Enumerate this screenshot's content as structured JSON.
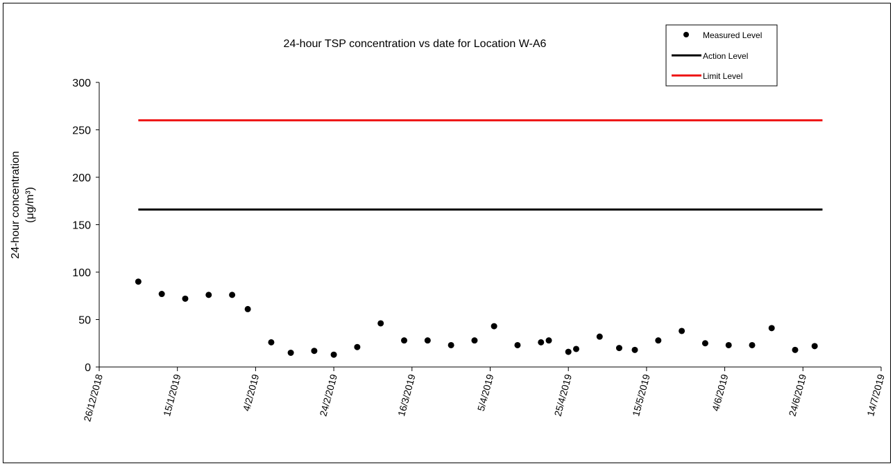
{
  "chart_data": {
    "type": "scatter",
    "title": "24-hour TSP concentration vs date for Location W-A6",
    "xlabel": "",
    "ylabel": "24-hour concentration",
    "ylabel_unit": "(μg/m³)",
    "xlim": [
      "2018-12-26",
      "2019-07-14"
    ],
    "ylim": [
      0,
      300
    ],
    "x_ticks": [
      "26/12/2018",
      "15/1/2019",
      "4/2/2019",
      "24/2/2019",
      "16/3/2019",
      "5/4/2019",
      "25/4/2019",
      "15/5/2019",
      "4/6/2019",
      "24/6/2019",
      "14/7/2019"
    ],
    "y_ticks": [
      "0",
      "50",
      "100",
      "150",
      "200",
      "250",
      "300"
    ],
    "grid": false,
    "legend_position": "top-right",
    "series": [
      {
        "name": "Measured Level",
        "kind": "marker",
        "color": "#000000",
        "points": [
          {
            "x": "2019-01-05",
            "y": 90
          },
          {
            "x": "2019-01-11",
            "y": 77
          },
          {
            "x": "2019-01-17",
            "y": 72
          },
          {
            "x": "2019-01-23",
            "y": 76
          },
          {
            "x": "2019-01-29",
            "y": 76
          },
          {
            "x": "2019-02-02",
            "y": 61
          },
          {
            "x": "2019-02-08",
            "y": 26
          },
          {
            "x": "2019-02-13",
            "y": 15
          },
          {
            "x": "2019-02-19",
            "y": 17
          },
          {
            "x": "2019-02-24",
            "y": 13
          },
          {
            "x": "2019-03-02",
            "y": 21
          },
          {
            "x": "2019-03-08",
            "y": 46
          },
          {
            "x": "2019-03-14",
            "y": 28
          },
          {
            "x": "2019-03-20",
            "y": 28
          },
          {
            "x": "2019-03-26",
            "y": 23
          },
          {
            "x": "2019-04-01",
            "y": 28
          },
          {
            "x": "2019-04-06",
            "y": 43
          },
          {
            "x": "2019-04-12",
            "y": 23
          },
          {
            "x": "2019-04-18",
            "y": 26
          },
          {
            "x": "2019-04-20",
            "y": 28
          },
          {
            "x": "2019-04-25",
            "y": 16
          },
          {
            "x": "2019-04-27",
            "y": 19
          },
          {
            "x": "2019-05-03",
            "y": 32
          },
          {
            "x": "2019-05-08",
            "y": 20
          },
          {
            "x": "2019-05-12",
            "y": 18
          },
          {
            "x": "2019-05-18",
            "y": 28
          },
          {
            "x": "2019-05-24",
            "y": 38
          },
          {
            "x": "2019-05-30",
            "y": 25
          },
          {
            "x": "2019-06-05",
            "y": 23
          },
          {
            "x": "2019-06-11",
            "y": 23
          },
          {
            "x": "2019-06-16",
            "y": 41
          },
          {
            "x": "2019-06-22",
            "y": 18
          },
          {
            "x": "2019-06-27",
            "y": 22
          }
        ]
      },
      {
        "name": "Action Level",
        "kind": "line",
        "color": "#000000",
        "points": [
          {
            "x": "2019-01-05",
            "y": 166
          },
          {
            "x": "2019-06-29",
            "y": 166
          }
        ]
      },
      {
        "name": "Limit Level",
        "kind": "line",
        "color": "#ee1111",
        "points": [
          {
            "x": "2019-01-05",
            "y": 260
          },
          {
            "x": "2019-06-29",
            "y": 260
          }
        ]
      }
    ]
  }
}
